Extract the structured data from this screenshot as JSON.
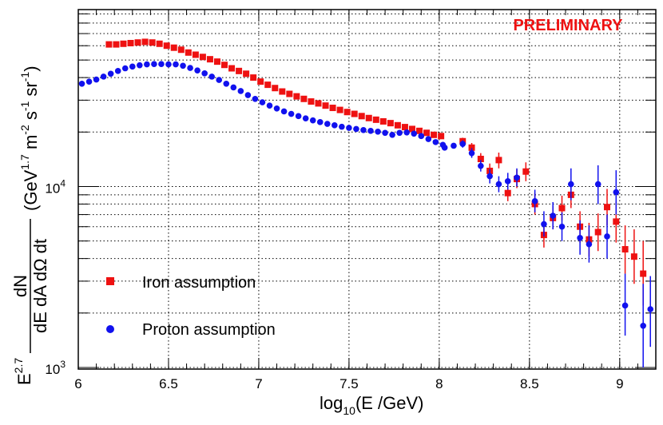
{
  "annotation": {
    "text": "PRELIMINARY",
    "color": "#ee1111"
  },
  "colors": {
    "iron": "#ee1111",
    "proton": "#1111ee",
    "grid": "#000000"
  },
  "legend": {
    "placement": "bottom-left",
    "iron_label": "Iron assumption",
    "proton_label": "Proton assumption"
  },
  "y_title": {
    "prefix": "E",
    "prefix_sup": "2.7",
    "frac_num": "dN",
    "frac_den": "dE dA dΩ dt",
    "units_open": "(GeV",
    "units_sup1": "1.7",
    "units_m": " m",
    "units_sup2": "-2",
    "units_s": " s",
    "units_sup3": "-1",
    "units_sr": " sr",
    "units_sup4": "-1",
    "units_close": ")"
  },
  "x_title": {
    "log": "log",
    "sub": "10",
    "rest": "(E /GeV)"
  },
  "chart_data": {
    "type": "scatter",
    "x_ticks": [
      "6",
      "6.5",
      "7",
      "7.5",
      "8",
      "8.5",
      "9"
    ],
    "y_ticks": [
      {
        "base": "10",
        "exp": "3",
        "value": 1000
      },
      {
        "base": "10",
        "exp": "4",
        "value": 10000
      }
    ],
    "xlim": [
      6.0,
      9.2
    ],
    "ylim": [
      980,
      95000
    ],
    "y_scale": "log",
    "grid": true,
    "series": [
      {
        "name": "Iron assumption",
        "marker": "square",
        "points": [
          {
            "x": 6.17,
            "y": 61000
          },
          {
            "x": 6.21,
            "y": 61000
          },
          {
            "x": 6.25,
            "y": 61500
          },
          {
            "x": 6.29,
            "y": 62000
          },
          {
            "x": 6.33,
            "y": 62500
          },
          {
            "x": 6.37,
            "y": 63000
          },
          {
            "x": 6.41,
            "y": 62500
          },
          {
            "x": 6.45,
            "y": 61500
          },
          {
            "x": 6.49,
            "y": 60000
          },
          {
            "x": 6.53,
            "y": 58500
          },
          {
            "x": 6.57,
            "y": 57000
          },
          {
            "x": 6.61,
            "y": 55000
          },
          {
            "x": 6.65,
            "y": 53500
          },
          {
            "x": 6.69,
            "y": 52000
          },
          {
            "x": 6.73,
            "y": 50500
          },
          {
            "x": 6.77,
            "y": 49000
          },
          {
            "x": 6.81,
            "y": 47000
          },
          {
            "x": 6.85,
            "y": 45000
          },
          {
            "x": 6.89,
            "y": 43500
          },
          {
            "x": 6.93,
            "y": 42000
          },
          {
            "x": 6.97,
            "y": 40000
          },
          {
            "x": 7.01,
            "y": 38000
          },
          {
            "x": 7.05,
            "y": 36500
          },
          {
            "x": 7.09,
            "y": 35000
          },
          {
            "x": 7.13,
            "y": 33500
          },
          {
            "x": 7.17,
            "y": 32500
          },
          {
            "x": 7.21,
            "y": 31500
          },
          {
            "x": 7.25,
            "y": 30500
          },
          {
            "x": 7.29,
            "y": 29500
          },
          {
            "x": 7.33,
            "y": 28800
          },
          {
            "x": 7.37,
            "y": 28000
          },
          {
            "x": 7.41,
            "y": 27200
          },
          {
            "x": 7.45,
            "y": 26500
          },
          {
            "x": 7.49,
            "y": 25800
          },
          {
            "x": 7.53,
            "y": 25200
          },
          {
            "x": 7.57,
            "y": 24500
          },
          {
            "x": 7.61,
            "y": 23900
          },
          {
            "x": 7.65,
            "y": 23400
          },
          {
            "x": 7.69,
            "y": 22900
          },
          {
            "x": 7.73,
            "y": 22400
          },
          {
            "x": 7.77,
            "y": 21800
          },
          {
            "x": 7.81,
            "y": 21300
          },
          {
            "x": 7.85,
            "y": 20800
          },
          {
            "x": 7.89,
            "y": 20300
          },
          {
            "x": 7.93,
            "y": 19800
          },
          {
            "x": 7.97,
            "y": 19300
          },
          {
            "x": 8.01,
            "y": 19000
          },
          {
            "x": 8.13,
            "y": 17800,
            "lo": 17000,
            "hi": 18600
          },
          {
            "x": 8.18,
            "y": 16400,
            "lo": 15400,
            "hi": 17400
          },
          {
            "x": 8.23,
            "y": 14200,
            "lo": 13100,
            "hi": 15300
          },
          {
            "x": 8.28,
            "y": 12200,
            "lo": 11000,
            "hi": 13400
          },
          {
            "x": 8.33,
            "y": 14000,
            "lo": 12600,
            "hi": 15400
          },
          {
            "x": 8.38,
            "y": 9200,
            "lo": 8300,
            "hi": 10300
          },
          {
            "x": 8.43,
            "y": 11000,
            "lo": 9800,
            "hi": 12400
          },
          {
            "x": 8.48,
            "y": 12100,
            "lo": 10700,
            "hi": 13600
          },
          {
            "x": 8.53,
            "y": 8000,
            "lo": 7000,
            "hi": 9200
          },
          {
            "x": 8.58,
            "y": 5400,
            "lo": 4600,
            "hi": 6400
          },
          {
            "x": 8.63,
            "y": 6700,
            "lo": 5800,
            "hi": 7800
          },
          {
            "x": 8.68,
            "y": 7600,
            "lo": 6500,
            "hi": 8900
          },
          {
            "x": 8.73,
            "y": 9000,
            "lo": 7600,
            "hi": 10700
          },
          {
            "x": 8.78,
            "y": 6000,
            "lo": 4900,
            "hi": 7300
          },
          {
            "x": 8.83,
            "y": 5100,
            "lo": 4100,
            "hi": 6300
          },
          {
            "x": 8.88,
            "y": 5600,
            "lo": 4400,
            "hi": 7100
          },
          {
            "x": 8.93,
            "y": 7700,
            "lo": 6100,
            "hi": 9700
          },
          {
            "x": 8.98,
            "y": 6400,
            "lo": 4900,
            "hi": 8300
          },
          {
            "x": 9.03,
            "y": 4500,
            "lo": 3300,
            "hi": 6100
          },
          {
            "x": 9.08,
            "y": 4100,
            "lo": 2900,
            "hi": 5800
          },
          {
            "x": 9.13,
            "y": 3300,
            "lo": 2200,
            "hi": 5000
          }
        ]
      },
      {
        "name": "Proton assumption",
        "marker": "circle",
        "points": [
          {
            "x": 6.02,
            "y": 37000
          },
          {
            "x": 6.06,
            "y": 38000
          },
          {
            "x": 6.1,
            "y": 39000
          },
          {
            "x": 6.14,
            "y": 40500
          },
          {
            "x": 6.18,
            "y": 42000
          },
          {
            "x": 6.22,
            "y": 43500
          },
          {
            "x": 6.26,
            "y": 45000
          },
          {
            "x": 6.3,
            "y": 46000
          },
          {
            "x": 6.34,
            "y": 46800
          },
          {
            "x": 6.38,
            "y": 47300
          },
          {
            "x": 6.42,
            "y": 47500
          },
          {
            "x": 6.46,
            "y": 47500
          },
          {
            "x": 6.5,
            "y": 47300
          },
          {
            "x": 6.54,
            "y": 47300
          },
          {
            "x": 6.58,
            "y": 46500
          },
          {
            "x": 6.62,
            "y": 45200
          },
          {
            "x": 6.66,
            "y": 43800
          },
          {
            "x": 6.7,
            "y": 42200
          },
          {
            "x": 6.74,
            "y": 40500
          },
          {
            "x": 6.78,
            "y": 38800
          },
          {
            "x": 6.82,
            "y": 37000
          },
          {
            "x": 6.86,
            "y": 35300
          },
          {
            "x": 6.9,
            "y": 33700
          },
          {
            "x": 6.94,
            "y": 32000
          },
          {
            "x": 6.98,
            "y": 30500
          },
          {
            "x": 7.02,
            "y": 29200
          },
          {
            "x": 7.06,
            "y": 28000
          },
          {
            "x": 7.1,
            "y": 27000
          },
          {
            "x": 7.14,
            "y": 26000
          },
          {
            "x": 7.18,
            "y": 25200
          },
          {
            "x": 7.22,
            "y": 24500
          },
          {
            "x": 7.26,
            "y": 23800
          },
          {
            "x": 7.3,
            "y": 23200
          },
          {
            "x": 7.34,
            "y": 22700
          },
          {
            "x": 7.38,
            "y": 22200
          },
          {
            "x": 7.42,
            "y": 21800
          },
          {
            "x": 7.46,
            "y": 21400
          },
          {
            "x": 7.5,
            "y": 21100
          },
          {
            "x": 7.54,
            "y": 20800
          },
          {
            "x": 7.58,
            "y": 20500
          },
          {
            "x": 7.62,
            "y": 20300
          },
          {
            "x": 7.66,
            "y": 20100
          },
          {
            "x": 7.7,
            "y": 19800
          },
          {
            "x": 7.74,
            "y": 19300
          },
          {
            "x": 7.78,
            "y": 19800
          },
          {
            "x": 7.82,
            "y": 19900
          },
          {
            "x": 7.86,
            "y": 19600
          },
          {
            "x": 7.9,
            "y": 19000
          },
          {
            "x": 7.94,
            "y": 18300
          },
          {
            "x": 7.98,
            "y": 17600
          },
          {
            "x": 8.02,
            "y": 17000
          },
          {
            "x": 8.03,
            "y": 16400,
            "lo": 15900,
            "hi": 16900
          },
          {
            "x": 8.08,
            "y": 16800,
            "lo": 16200,
            "hi": 17400
          },
          {
            "x": 8.13,
            "y": 17200,
            "lo": 16400,
            "hi": 18000
          },
          {
            "x": 8.18,
            "y": 15300,
            "lo": 14400,
            "hi": 16300
          },
          {
            "x": 8.23,
            "y": 13000,
            "lo": 12100,
            "hi": 14000
          },
          {
            "x": 8.28,
            "y": 11400,
            "lo": 10400,
            "hi": 12500
          },
          {
            "x": 8.33,
            "y": 10300,
            "lo": 9300,
            "hi": 11400
          },
          {
            "x": 8.38,
            "y": 10700,
            "lo": 9600,
            "hi": 11900
          },
          {
            "x": 8.43,
            "y": 11200,
            "lo": 10000,
            "hi": 12600
          },
          {
            "x": 8.53,
            "y": 8300,
            "lo": 7200,
            "hi": 9600
          },
          {
            "x": 8.58,
            "y": 6200,
            "lo": 5300,
            "hi": 7300
          },
          {
            "x": 8.63,
            "y": 6900,
            "lo": 5800,
            "hi": 8200
          },
          {
            "x": 8.68,
            "y": 6000,
            "lo": 5000,
            "hi": 7200
          },
          {
            "x": 8.73,
            "y": 10300,
            "lo": 8400,
            "hi": 12600
          },
          {
            "x": 8.78,
            "y": 5200,
            "lo": 4200,
            "hi": 6500
          },
          {
            "x": 8.83,
            "y": 4800,
            "lo": 3800,
            "hi": 6100
          },
          {
            "x": 8.88,
            "y": 10300,
            "lo": 8000,
            "hi": 13100
          },
          {
            "x": 8.93,
            "y": 5300,
            "lo": 4000,
            "hi": 7000
          },
          {
            "x": 8.98,
            "y": 9300,
            "lo": 7000,
            "hi": 12300
          },
          {
            "x": 9.03,
            "y": 2200,
            "lo": 1500,
            "hi": 3300
          },
          {
            "x": 9.13,
            "y": 1700,
            "lo": 1000,
            "hi": 2900
          },
          {
            "x": 9.17,
            "y": 2100,
            "lo": 1300,
            "hi": 3200
          }
        ]
      }
    ]
  }
}
